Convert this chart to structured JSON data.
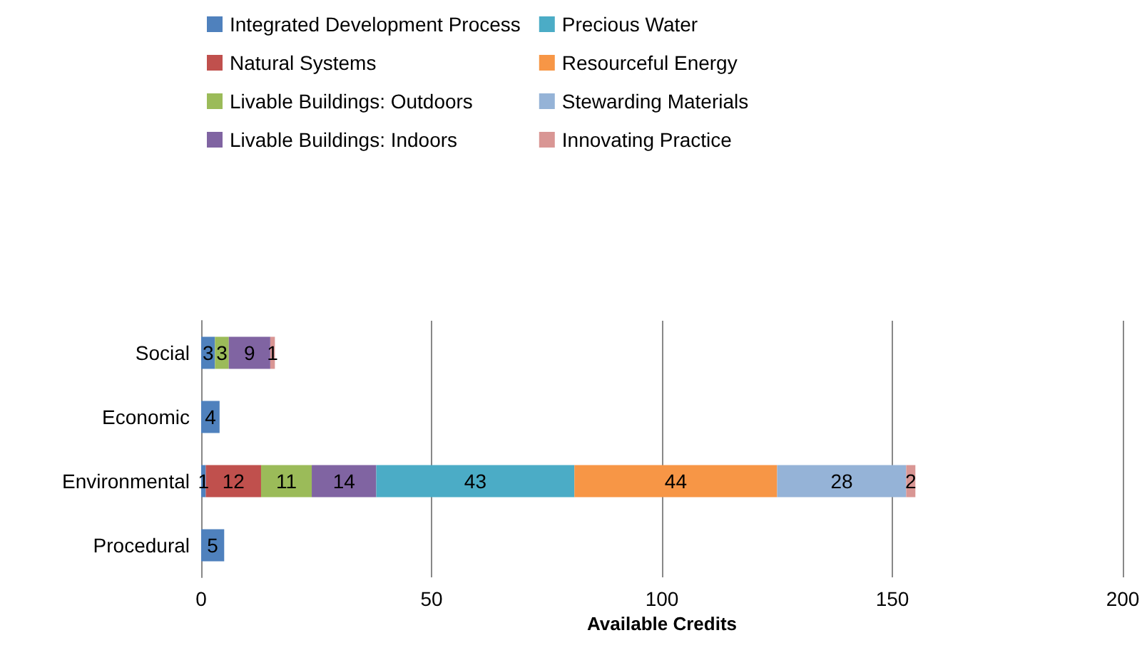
{
  "chart_data": {
    "type": "bar",
    "orientation": "horizontal",
    "stacked": true,
    "data_labels": true,
    "grid": "x",
    "legend": "top",
    "xlabel": "Available Credits",
    "categories": [
      "Social",
      "Economic",
      "Environmental",
      "Procedural"
    ],
    "xlim": [
      0,
      200
    ],
    "xticks": [
      0,
      50,
      100,
      150,
      200
    ],
    "series": [
      {
        "name": "Integrated Development Process",
        "color": "#4f81bd",
        "values": [
          3,
          4,
          1,
          5
        ]
      },
      {
        "name": "Natural Systems",
        "color": "#c0504d",
        "values": [
          null,
          null,
          12,
          null
        ]
      },
      {
        "name": "Livable Buildings: Outdoors",
        "color": "#9bbb59",
        "values": [
          3,
          null,
          11,
          null
        ]
      },
      {
        "name": "Livable Buildings: Indoors",
        "color": "#8064a2",
        "values": [
          9,
          null,
          14,
          null
        ]
      },
      {
        "name": "Precious Water",
        "color": "#4bacc6",
        "values": [
          null,
          null,
          43,
          null
        ]
      },
      {
        "name": "Resourceful Energy",
        "color": "#f79646",
        "values": [
          null,
          null,
          44,
          null
        ]
      },
      {
        "name": "Stewarding Materials",
        "color": "#95b3d7",
        "values": [
          null,
          null,
          28,
          null
        ]
      },
      {
        "name": "Innovating Practice",
        "color": "#d99694",
        "values": [
          1,
          null,
          2,
          null
        ]
      }
    ]
  }
}
